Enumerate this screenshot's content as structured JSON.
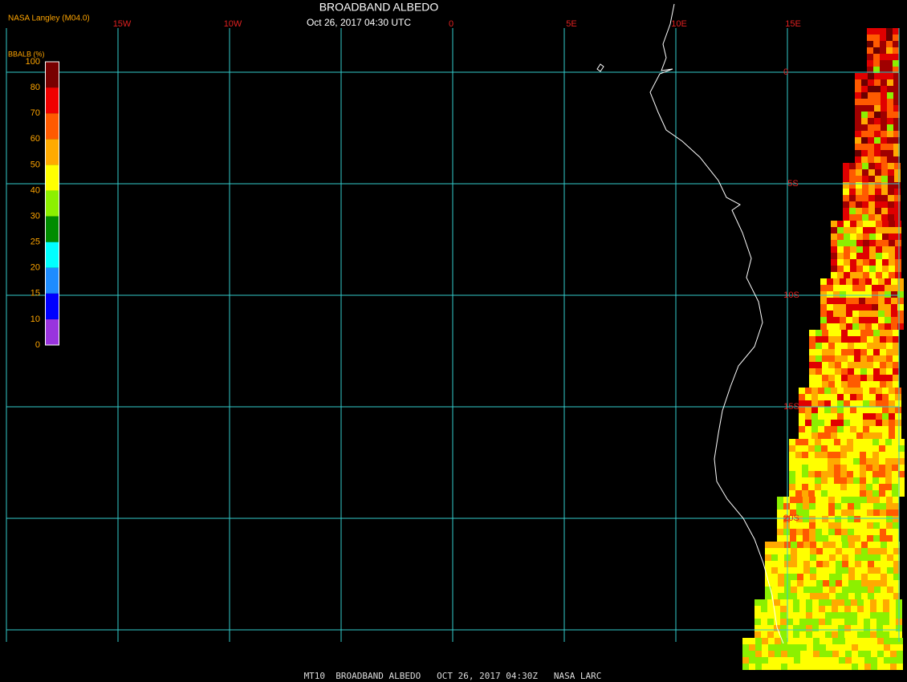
{
  "header": {
    "title": "BROADBAND ALBEDO",
    "subtitle": "Oct 26, 2017 04:30 UTC",
    "source": "NASA Langley (M04.0)"
  },
  "legend": {
    "title": "BBALB (%)",
    "labels": [
      "0",
      "10",
      "15",
      "20",
      "25",
      "30",
      "40",
      "50",
      "60",
      "70",
      "80",
      "100"
    ],
    "colors": [
      "#9933dd",
      "#0000ff",
      "#1e8cff",
      "#00ffff",
      "#008c00",
      "#8cf000",
      "#ffff00",
      "#ffaa00",
      "#ff5a00",
      "#f00000",
      "#780000"
    ]
  },
  "longitude_labels": [
    "15W",
    "10W",
    "0",
    "5E",
    "10E",
    "15E"
  ],
  "latitude_labels": [
    "0",
    "5S",
    "10S",
    "15S",
    "20S"
  ],
  "footer": "MT10  BROADBAND ALBEDO   OCT 26, 2017 04:30Z   NASA LARC"
}
